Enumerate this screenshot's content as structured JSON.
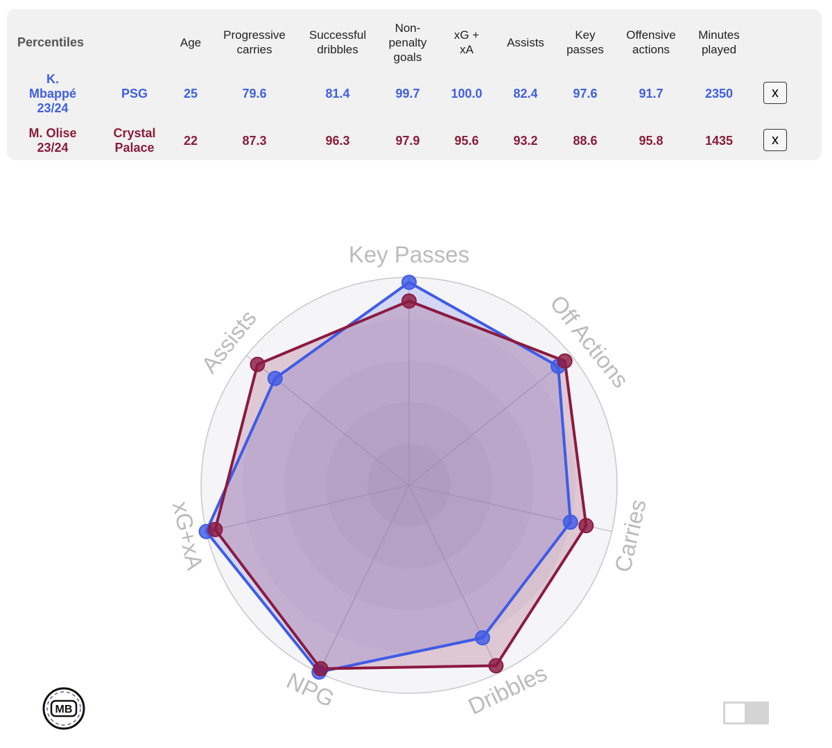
{
  "table": {
    "title": "Percentiles",
    "headers": [
      [
        "Age"
      ],
      [
        "Progressive",
        "carries"
      ],
      [
        "Successful",
        "dribbles"
      ],
      [
        "Non-",
        "penalty",
        "goals"
      ],
      [
        "xG +",
        "xA"
      ],
      [
        "Assists"
      ],
      [
        "Key",
        "passes"
      ],
      [
        "Offensive",
        "actions"
      ],
      [
        "Minutes",
        "played"
      ]
    ],
    "remove_label": "x",
    "rows": [
      {
        "player": [
          "K.",
          "Mbappé",
          "23/24"
        ],
        "team": [
          "PSG"
        ],
        "values": [
          "25",
          "79.6",
          "81.4",
          "99.7",
          "100.0",
          "82.4",
          "97.6",
          "91.7",
          "2350"
        ]
      },
      {
        "player": [
          "M. Olise",
          "23/24"
        ],
        "team": [
          "Crystal",
          "Palace"
        ],
        "values": [
          "22",
          "87.3",
          "96.3",
          "97.9",
          "95.6",
          "93.2",
          "88.6",
          "95.8",
          "1435"
        ]
      }
    ]
  },
  "colors": {
    "player1": "#3f5be6",
    "player2": "#8b1a40",
    "grid": "#c8c8c8",
    "axis_label": "#bbbbbb"
  },
  "chart_data": {
    "type": "radar",
    "axes": [
      "Key Passes",
      "Off Actions",
      "Carries",
      "Dribbles",
      "NPG",
      "xG+xA",
      "Assists"
    ],
    "range": [
      0,
      100
    ],
    "series": [
      {
        "name": "K. Mbappé 23/24",
        "values": [
          97.6,
          91.7,
          79.6,
          81.4,
          99.7,
          100.0,
          82.4
        ]
      },
      {
        "name": "M. Olise 23/24",
        "values": [
          88.6,
          95.8,
          87.3,
          96.3,
          97.9,
          95.6,
          93.2
        ]
      }
    ]
  },
  "logo": {
    "text": "MB"
  },
  "toggle": {
    "state": "off"
  }
}
